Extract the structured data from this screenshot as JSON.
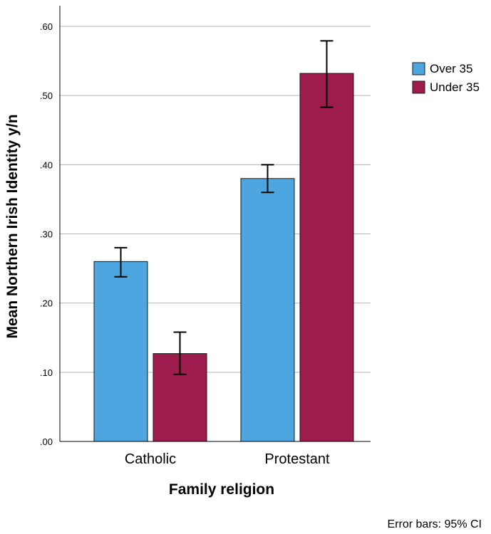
{
  "chart_data": {
    "type": "bar",
    "categories": [
      "Catholic",
      "Protestant"
    ],
    "series": [
      {
        "name": "Over 35",
        "color": "#4da6e0",
        "values": [
          0.26,
          0.38
        ],
        "ci_low": [
          0.238,
          0.36
        ],
        "ci_high": [
          0.28,
          0.4
        ]
      },
      {
        "name": "Under 35",
        "color": "#9e1b4e",
        "values": [
          0.127,
          0.532
        ],
        "ci_low": [
          0.097,
          0.483
        ],
        "ci_high": [
          0.158,
          0.579
        ]
      }
    ],
    "xlabel": "Family religion",
    "ylabel": "Mean Northern Irish Identity y/n",
    "ylim": [
      0,
      0.6
    ],
    "yticks": [
      0,
      0.1,
      0.2,
      0.3,
      0.4,
      0.5,
      0.6
    ],
    "ytick_labels": [
      ".00",
      ".10",
      ".20",
      ".30",
      ".40",
      ".50",
      ".60"
    ],
    "grid": "horizontal",
    "legend_position": "top-right",
    "footnote": "Error bars: 95% CI"
  }
}
